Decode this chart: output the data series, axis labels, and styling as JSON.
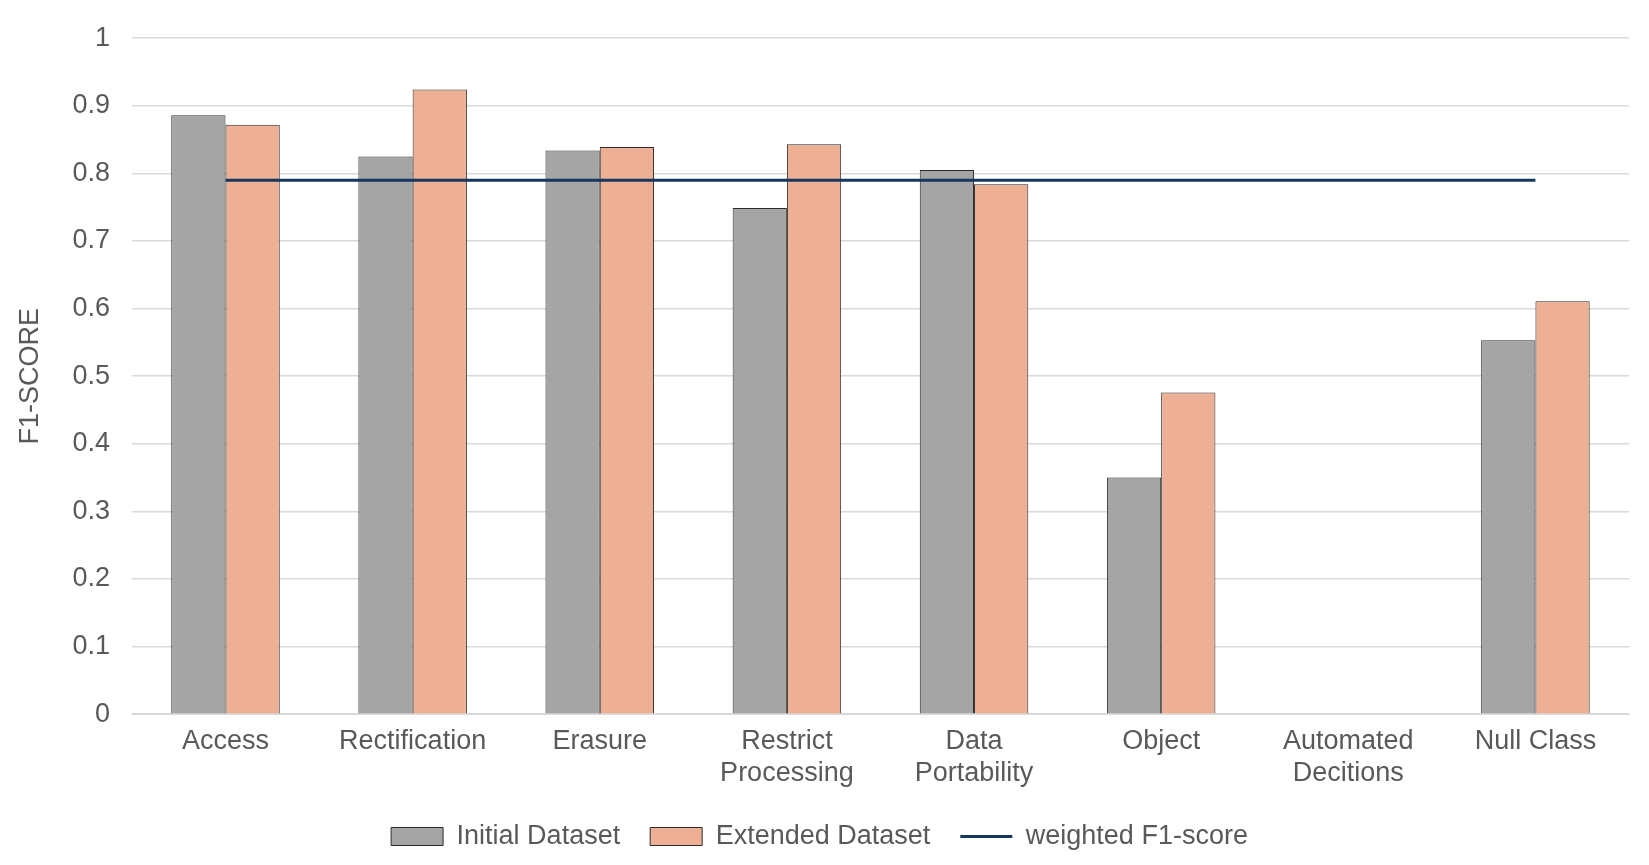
{
  "chart_data": {
    "type": "bar",
    "ylabel": "F1-SCORE",
    "categories": [
      "Access",
      "Rectification",
      "Erasure",
      "Restrict Processing",
      "Data Portability",
      "Object",
      "Automated Decitions",
      "Null Class"
    ],
    "series": [
      {
        "name": "Initial Dataset",
        "color": "#a5a5a5",
        "values": [
          0.886,
          0.825,
          0.834,
          0.749,
          0.805,
          0.35,
          0,
          0.553
        ]
      },
      {
        "name": "Extended Dataset",
        "color": "#edb094",
        "values": [
          0.872,
          0.924,
          0.839,
          0.843,
          0.784,
          0.476,
          0,
          0.611
        ]
      },
      {
        "name": "weighted F1-score",
        "type": "line",
        "color": "#17375e",
        "values": [
          0.79,
          0.79,
          0.79,
          0.79,
          0.79,
          0.79,
          0.79,
          0.79
        ]
      }
    ],
    "ylim": [
      0,
      1
    ],
    "yticks": [
      0,
      0.1,
      0.2,
      0.3,
      0.4,
      0.5,
      0.6,
      0.7,
      0.8,
      0.9,
      1
    ],
    "grid": "y",
    "legend": "bottom",
    "marker": "none"
  }
}
